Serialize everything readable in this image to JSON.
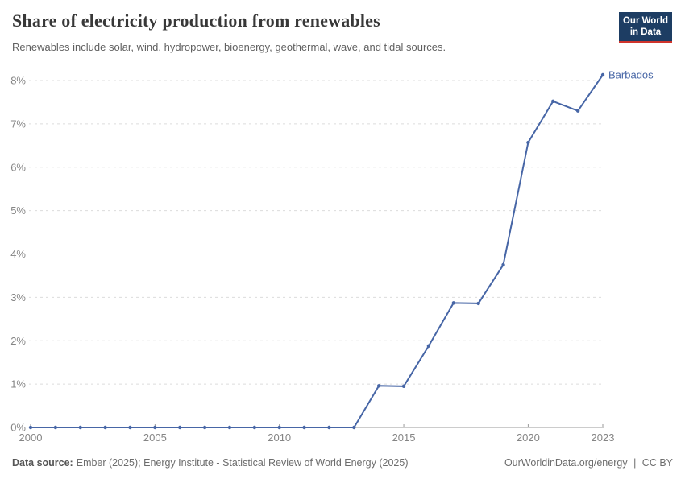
{
  "header": {
    "title": "Share of electricity production from renewables",
    "subtitle": "Renewables include solar, wind, hydropower, bioenergy, geothermal, wave, and tidal sources.",
    "logo": {
      "line1": "Our World",
      "line2": "in Data",
      "bg_color": "#1d3d63",
      "stripe_color": "#d0342c"
    }
  },
  "chart_data": {
    "type": "line",
    "title": "Share of electricity production from renewables",
    "xlabel": "",
    "ylabel": "",
    "years": [
      2000,
      2001,
      2002,
      2003,
      2004,
      2005,
      2006,
      2007,
      2008,
      2009,
      2010,
      2011,
      2012,
      2013,
      2014,
      2015,
      2016,
      2017,
      2018,
      2019,
      2020,
      2021,
      2022,
      2023
    ],
    "series": [
      {
        "name": "Barbados",
        "color": "#4766a6",
        "values": [
          0,
          0,
          0,
          0,
          0,
          0,
          0,
          0,
          0,
          0,
          0,
          0,
          0,
          0,
          0.96,
          0.95,
          1.88,
          2.87,
          2.86,
          3.75,
          6.57,
          7.52,
          7.3,
          8.13
        ]
      }
    ],
    "x_ticks": [
      2000,
      2005,
      2010,
      2015,
      2020,
      2023
    ],
    "y_ticks": [
      0,
      1,
      2,
      3,
      4,
      5,
      6,
      7,
      8
    ],
    "y_suffix": "%",
    "xlim": [
      2000,
      2023
    ],
    "ylim": [
      0,
      8.6
    ],
    "grid": "horizontal-dashed",
    "legend_position": "end-of-line-label"
  },
  "footer": {
    "source_label": "Data source:",
    "source_text": "Ember (2025); Energy Institute - Statistical Review of World Energy (2025)",
    "link_text": "OurWorldinData.org/energy",
    "separator": "|",
    "license_text": "CC BY"
  }
}
